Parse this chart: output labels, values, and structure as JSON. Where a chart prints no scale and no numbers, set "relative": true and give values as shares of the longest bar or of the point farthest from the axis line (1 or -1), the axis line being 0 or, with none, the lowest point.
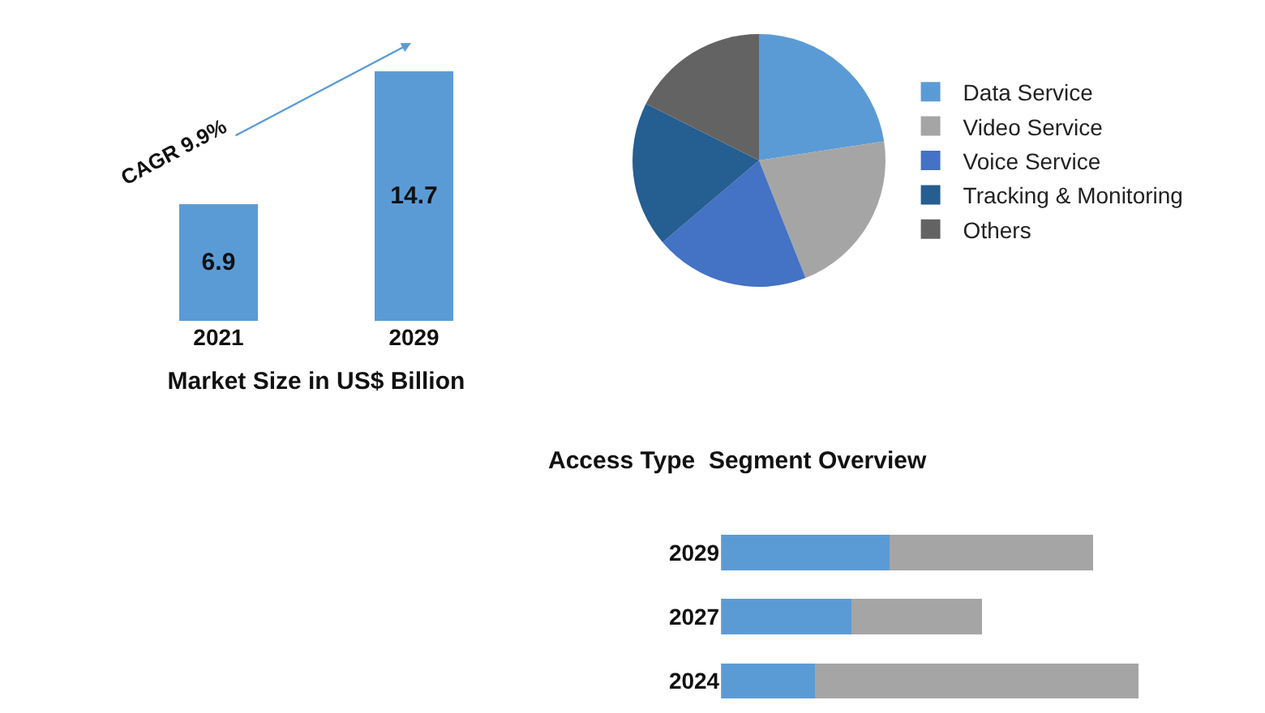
{
  "chart_data": [
    {
      "type": "bar",
      "categories": [
        "2021",
        "2029"
      ],
      "values": [
        6.9,
        14.7
      ],
      "color": "#5b9bd5",
      "data_labels": true,
      "xlabel": "Market Size in US$ Billion",
      "annotations": [
        "CAGR 9.9%"
      ]
    },
    {
      "type": "pie",
      "categories": [
        "Data Service",
        "Video Service",
        "Voice Service",
        "Tracking & Monitoring",
        "Others"
      ],
      "values": [
        22.6,
        21.4,
        19.8,
        18.6,
        17.6
      ],
      "colors": [
        "#5b9bd5",
        "#a5a5a5",
        "#4472c4",
        "#255e91",
        "#636363"
      ],
      "legend": "right"
    },
    {
      "type": "bar",
      "title": "Access Type  Segment Overview",
      "orientation": "horizontal",
      "stacked": true,
      "relative": true,
      "categories": [
        "2029",
        "2027",
        "2024"
      ],
      "series": [
        {
          "color": "#5b9bd5",
          "values": [
            0.404,
            0.312,
            0.224
          ]
        },
        {
          "color": "#a5a5a5",
          "values": [
            0.488,
            0.313,
            0.39
          ]
        },
        {
          "color": "#a5a5a5",
          "values": [
            null,
            null,
            0.386
          ]
        }
      ]
    }
  ]
}
